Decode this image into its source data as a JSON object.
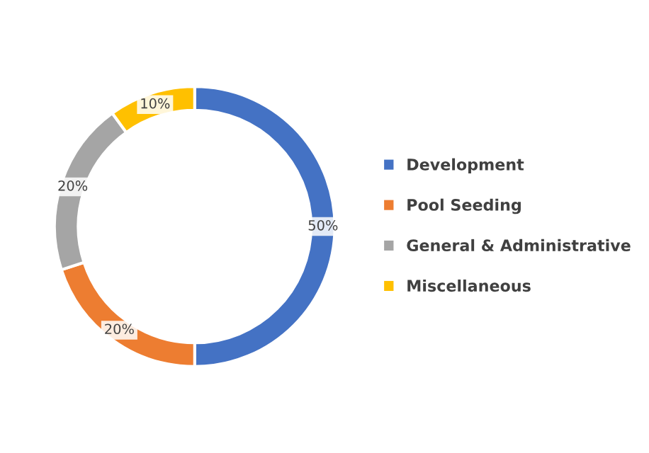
{
  "chart_data": {
    "type": "donut",
    "categories": [
      "Development",
      "Pool Seeding",
      "General & Administrative",
      "Miscellaneous"
    ],
    "values": [
      50,
      20,
      20,
      10
    ],
    "colors": [
      "#4472c4",
      "#ed7d31",
      "#a5a5a5",
      "#ffc000"
    ],
    "value_labels": [
      "50%",
      "20%",
      "20%",
      "10%"
    ],
    "legend": "right"
  }
}
